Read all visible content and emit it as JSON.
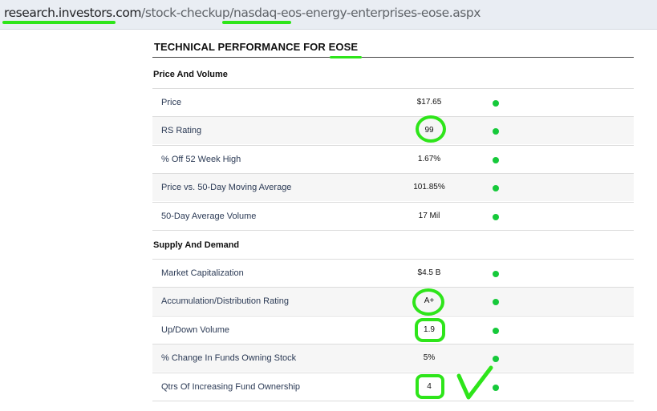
{
  "browser": {
    "url_domain": "research.investors.com",
    "url_path_before": "/stock-checkup/nasdaq-",
    "url_path_highlight": "eos-energy",
    "url_path_after": "-enterprises-eose.aspx"
  },
  "panel": {
    "title_prefix": "TECHNICAL PERFORMANCE FOR ",
    "title_ticker": "EOSE",
    "sections": [
      {
        "heading": "Price And Volume",
        "rows": [
          {
            "label": "Price",
            "value": "$17.65",
            "status": "green"
          },
          {
            "label": "RS Rating",
            "value": "99",
            "status": "green"
          },
          {
            "label": "% Off 52 Week High",
            "value": "1.67%",
            "status": "green"
          },
          {
            "label": "Price vs. 50-Day Moving Average",
            "value": "101.85%",
            "status": "green"
          },
          {
            "label": "50-Day Average Volume",
            "value": "17 Mil",
            "status": "green"
          }
        ]
      },
      {
        "heading": "Supply And Demand",
        "rows": [
          {
            "label": "Market Capitalization",
            "value": "$4.5 B",
            "status": "green"
          },
          {
            "label": "Accumulation/Distribution Rating",
            "value": "A+",
            "status": "green"
          },
          {
            "label": "Up/Down Volume",
            "value": "1.9",
            "status": "green"
          },
          {
            "label": "% Change In Funds Owning Stock",
            "value": "5%",
            "status": "green"
          },
          {
            "label": "Qtrs Of Increasing Fund Ownership",
            "value": "4",
            "status": "green"
          }
        ]
      }
    ]
  },
  "colors": {
    "status_green": "#16c93a",
    "annotation_green": "#2ee51a"
  }
}
